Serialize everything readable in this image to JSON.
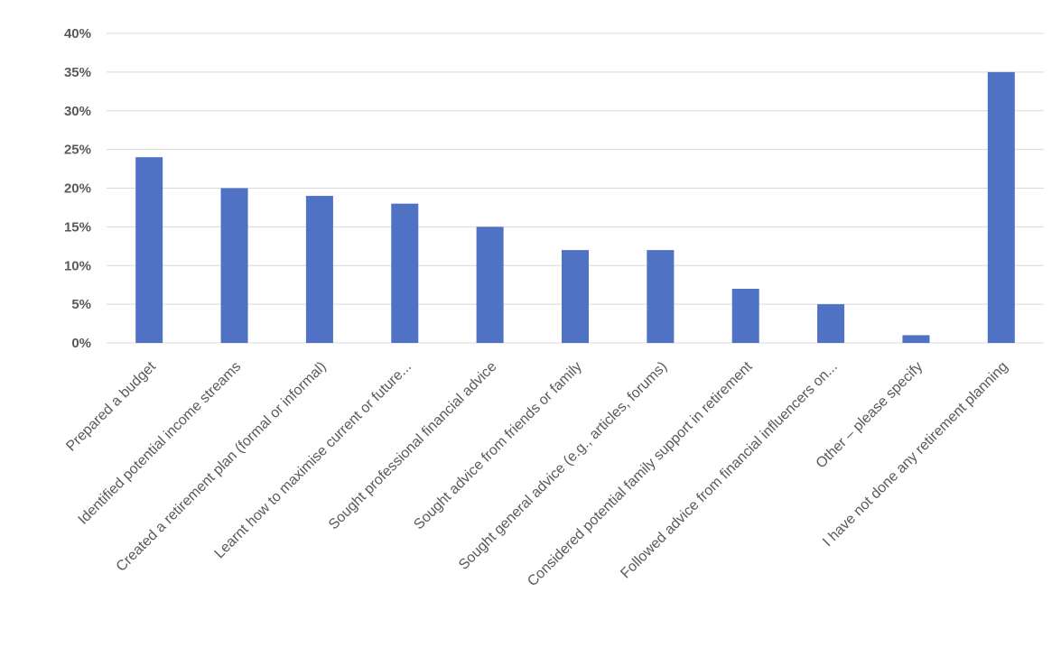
{
  "chart_data": {
    "type": "bar",
    "title": "",
    "xlabel": "",
    "ylabel": "",
    "ylim": [
      0,
      40
    ],
    "y_ticks": [
      "0%",
      "5%",
      "10%",
      "15%",
      "20%",
      "25%",
      "30%",
      "35%",
      "40%"
    ],
    "y_tick_values": [
      0,
      5,
      10,
      15,
      20,
      25,
      30,
      35,
      40
    ],
    "grid": true,
    "legend": "none",
    "bar_color": "#4f72c4",
    "categories": [
      "Prepared a budget",
      "Identified potential income streams",
      "Created a retirement plan (formal or informal)",
      "Learnt how to maximise current or future...",
      "Sought professional financial advice",
      "Sought advice from friends or family",
      "Sought general advice (e.g., articles, forums)",
      "Considered potential family support in retirement",
      "Followed advice from financial influencers on...",
      "Other – please specify",
      "I have not done any retirement planning"
    ],
    "values": [
      24,
      20,
      19,
      18,
      15,
      12,
      12,
      7,
      5,
      1,
      35
    ]
  }
}
